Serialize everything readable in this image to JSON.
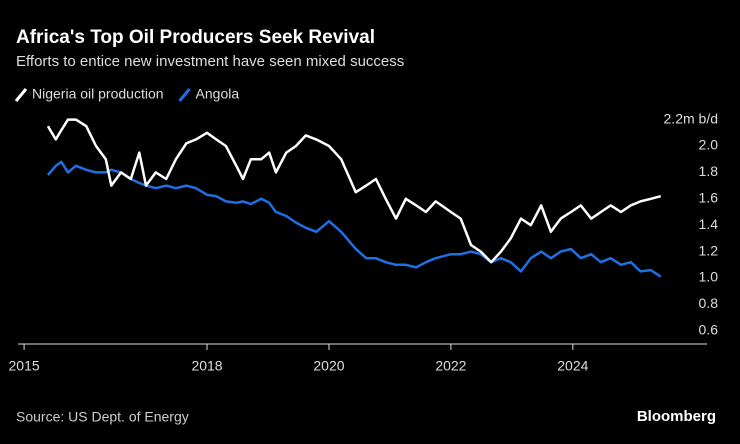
{
  "chart_data": {
    "type": "line",
    "title": "Africa's Top Oil Producers Seek Revival",
    "subtitle": "Efforts to entice new investment have seen mixed success",
    "source": "Source: US Dept. of Energy",
    "brand": "Bloomberg",
    "x": [
      2015.39,
      2015.52,
      2015.61,
      2015.72,
      2015.85,
      2016.02,
      2016.18,
      2016.34,
      2016.43,
      2016.59,
      2016.75,
      2016.89,
      2017.0,
      2017.16,
      2017.33,
      2017.49,
      2017.66,
      2017.82,
      2018.0,
      2018.15,
      2018.31,
      2018.48,
      2018.59,
      2018.72,
      2018.89,
      2019.02,
      2019.13,
      2019.3,
      2019.46,
      2019.62,
      2019.79,
      2020.0,
      2020.2,
      2020.44,
      2020.61,
      2020.77,
      2020.93,
      2021.1,
      2021.26,
      2021.43,
      2021.59,
      2021.75,
      2022.0,
      2022.16,
      2022.33,
      2022.49,
      2022.66,
      2022.82,
      2022.98,
      2023.15,
      2023.31,
      2023.48,
      2023.64,
      2023.8,
      2023.97,
      2024.13,
      2024.3,
      2024.46,
      2024.62,
      2024.79,
      2024.95,
      2025.11,
      2025.28,
      2025.44
    ],
    "series": [
      {
        "name": "Nigeria oil production",
        "color": "#ffffff",
        "values": [
          2.15,
          2.05,
          2.12,
          2.2,
          2.2,
          2.15,
          2.0,
          1.9,
          1.7,
          1.8,
          1.75,
          1.95,
          1.7,
          1.8,
          1.75,
          1.9,
          2.02,
          2.05,
          2.1,
          2.05,
          2.0,
          1.85,
          1.75,
          1.9,
          1.9,
          1.95,
          1.8,
          1.95,
          2.0,
          2.08,
          2.05,
          2.0,
          1.9,
          1.65,
          1.7,
          1.75,
          1.6,
          1.45,
          1.6,
          1.55,
          1.5,
          1.58,
          1.5,
          1.45,
          1.25,
          1.2,
          1.12,
          1.2,
          1.3,
          1.45,
          1.4,
          1.55,
          1.35,
          1.45,
          1.5,
          1.55,
          1.45,
          1.5,
          1.55,
          1.5,
          1.55,
          1.58,
          1.6,
          1.62
        ]
      },
      {
        "name": "Angola",
        "color": "#1f6fe5",
        "values": [
          1.78,
          1.85,
          1.88,
          1.8,
          1.85,
          1.82,
          1.8,
          1.8,
          1.82,
          1.8,
          1.75,
          1.72,
          1.7,
          1.68,
          1.7,
          1.68,
          1.7,
          1.68,
          1.63,
          1.62,
          1.58,
          1.57,
          1.58,
          1.56,
          1.6,
          1.57,
          1.5,
          1.47,
          1.42,
          1.38,
          1.35,
          1.43,
          1.35,
          1.22,
          1.15,
          1.15,
          1.12,
          1.1,
          1.1,
          1.08,
          1.12,
          1.15,
          1.18,
          1.18,
          1.2,
          1.18,
          1.12,
          1.15,
          1.12,
          1.05,
          1.15,
          1.2,
          1.15,
          1.2,
          1.22,
          1.15,
          1.18,
          1.12,
          1.15,
          1.1,
          1.12,
          1.05,
          1.06,
          1.01
        ]
      }
    ],
    "xlim": [
      2014.9,
      2026.2
    ],
    "xticks": [
      2015,
      2018,
      2020,
      2022,
      2024
    ],
    "ylim": [
      0.5,
      2.25
    ],
    "yticks": [
      0.6,
      0.8,
      {
        "value": 1,
        "label": "1.0"
      },
      1.2,
      1.4,
      1.6,
      1.8,
      {
        "value": 2,
        "label": "2.0"
      },
      {
        "value": 2.2,
        "label": "2.2m b/d"
      }
    ]
  }
}
